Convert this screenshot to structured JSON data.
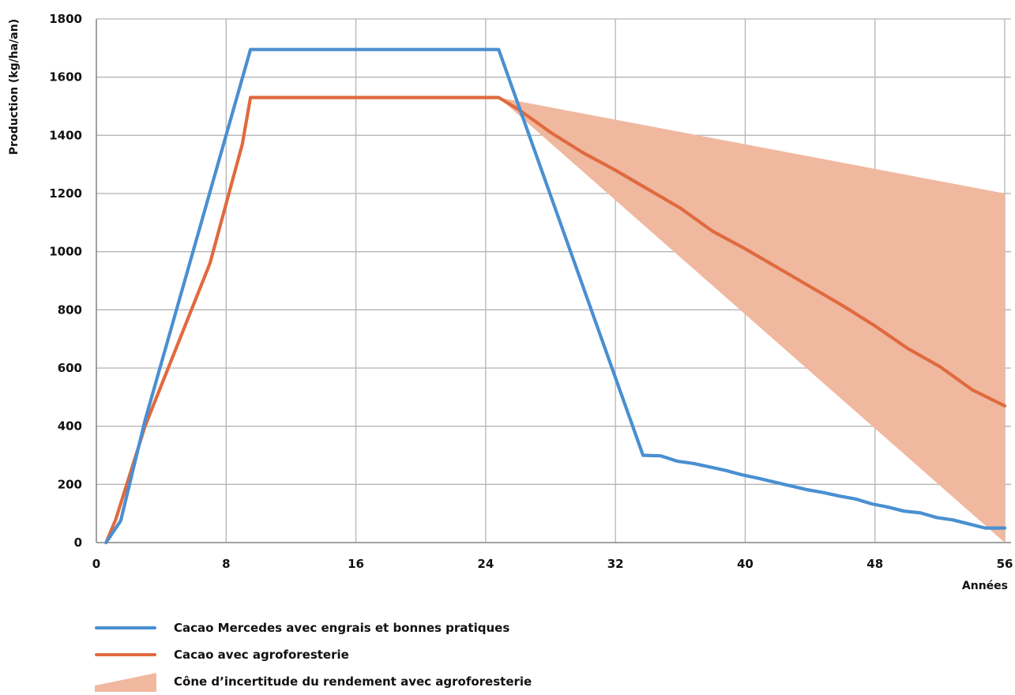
{
  "chart_data": {
    "type": "line",
    "title": "",
    "xlabel": "Années",
    "ylabel": "Production (kg/ha/an)",
    "xlim": [
      0,
      56
    ],
    "ylim": [
      0,
      1800
    ],
    "xticks": [
      "0",
      "8",
      "16",
      "24",
      "32",
      "40",
      "48",
      "56"
    ],
    "yticks": [
      "0",
      "200",
      "400",
      "600",
      "800",
      "1000",
      "1200",
      "1400",
      "1600",
      "1800"
    ],
    "grid": true,
    "legend_position": "bottom",
    "series": [
      {
        "name": "Cacao Mercedes avec engrais et bonnes pratiques",
        "color": "#4a8fd1",
        "points": [
          [
            0.6,
            0
          ],
          [
            1.5,
            75
          ],
          [
            3,
            420
          ],
          [
            9.5,
            1695
          ],
          [
            24.8,
            1695
          ],
          [
            33.7,
            300
          ],
          [
            34.8,
            298
          ],
          [
            35.8,
            280
          ],
          [
            36.8,
            272
          ],
          [
            37.8,
            260
          ],
          [
            38.8,
            248
          ],
          [
            39.8,
            233
          ],
          [
            40.8,
            221
          ],
          [
            41.8,
            208
          ],
          [
            42.8,
            195
          ],
          [
            43.8,
            182
          ],
          [
            44.8,
            172
          ],
          [
            45.8,
            160
          ],
          [
            46.8,
            150
          ],
          [
            47.8,
            133
          ],
          [
            48.8,
            122
          ],
          [
            49.8,
            108
          ],
          [
            50.8,
            102
          ],
          [
            51.8,
            86
          ],
          [
            52.8,
            78
          ],
          [
            53.8,
            64
          ],
          [
            54.8,
            50
          ],
          [
            56,
            50
          ]
        ]
      },
      {
        "name": "Cacao avec agroforesterie",
        "color": "#e06a3f",
        "points": [
          [
            0.6,
            0
          ],
          [
            1.2,
            80
          ],
          [
            3,
            400
          ],
          [
            7,
            960
          ],
          [
            9,
            1370
          ],
          [
            9.5,
            1530
          ],
          [
            24.8,
            1530
          ],
          [
            26,
            1490
          ],
          [
            28,
            1410
          ],
          [
            30,
            1340
          ],
          [
            32,
            1280
          ],
          [
            34,
            1215
          ],
          [
            36,
            1150
          ],
          [
            38,
            1070
          ],
          [
            40,
            1010
          ],
          [
            42,
            945
          ],
          [
            44,
            880
          ],
          [
            46,
            815
          ],
          [
            48,
            745
          ],
          [
            50,
            668
          ],
          [
            52,
            605
          ],
          [
            54,
            525
          ],
          [
            56,
            470
          ]
        ]
      },
      {
        "name": "Cône d’incertitude du rendement avec agroforesterie",
        "type": "area",
        "color": "#f0b89f",
        "upper": [
          [
            24.8,
            1530
          ],
          [
            56,
            1200
          ]
        ],
        "lower": [
          [
            24.8,
            1530
          ],
          [
            56,
            0
          ]
        ]
      }
    ]
  }
}
